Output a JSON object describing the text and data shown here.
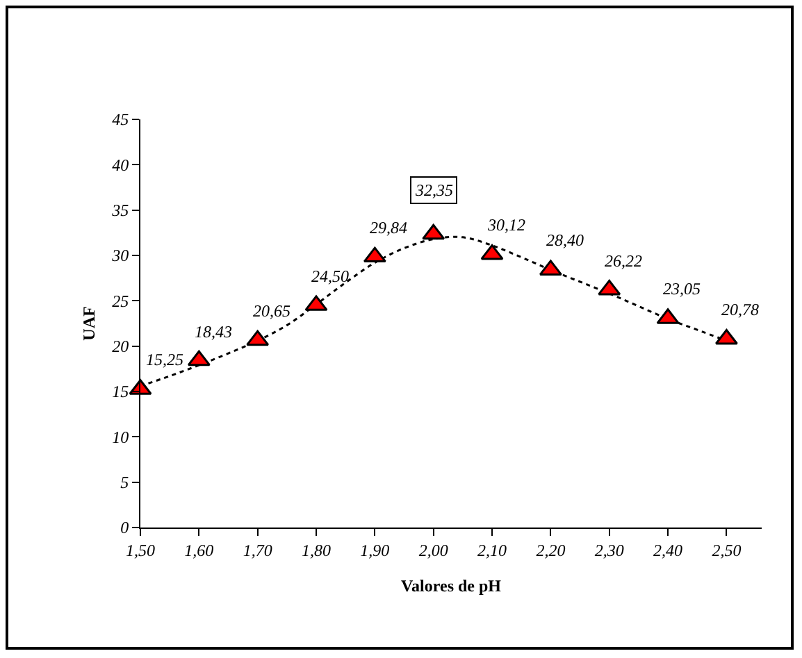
{
  "chart_data": {
    "type": "scatter",
    "xlabel": "Valores de pH",
    "ylabel": "UAF",
    "x": [
      1.5,
      1.6,
      1.7,
      1.8,
      1.9,
      2.0,
      2.1,
      2.2,
      2.3,
      2.4,
      2.5
    ],
    "series": [
      {
        "color": "#ff0000",
        "values": [
          15.25,
          18.43,
          20.65,
          24.5,
          29.84,
          32.35,
          30.12,
          28.4,
          26.22,
          23.05,
          20.78
        ],
        "value_labels": [
          "15,25",
          "18,43",
          "20,65",
          "24,50",
          "29,84",
          "32,35",
          "30,12",
          "28,40",
          "26,22",
          "23,05",
          "20,78"
        ]
      },
      {
        "type": "line",
        "color": "#000000",
        "line_style": "dotted",
        "marker": "none",
        "x": [
          1.5,
          1.55,
          1.6,
          1.65,
          1.7,
          1.75,
          1.8,
          1.85,
          1.9,
          1.95,
          2.0,
          2.05,
          2.1,
          2.15,
          2.2,
          2.25,
          2.3,
          2.35,
          2.4,
          2.45,
          2.5
        ],
        "values": [
          15.6,
          16.7,
          17.9,
          19.2,
          20.6,
          22.3,
          24.6,
          27.0,
          29.2,
          30.8,
          31.8,
          32.0,
          31.1,
          29.8,
          28.4,
          27.1,
          25.8,
          24.4,
          23.0,
          21.8,
          20.6
        ]
      }
    ],
    "marker": "triangle",
    "xlim": [
      1.5,
      2.56
    ],
    "xticks": [
      {
        "value": 1.5,
        "label": "1,50"
      },
      {
        "value": 1.6,
        "label": "1,60"
      },
      {
        "value": 1.7,
        "label": "1,70"
      },
      {
        "value": 1.8,
        "label": "1,80"
      },
      {
        "value": 1.9,
        "label": "1,90"
      },
      {
        "value": 2.0,
        "label": "2,00"
      },
      {
        "value": 2.1,
        "label": "2,10"
      },
      {
        "value": 2.2,
        "label": "2,20"
      },
      {
        "value": 2.3,
        "label": "2,30"
      },
      {
        "value": 2.4,
        "label": "2,40"
      },
      {
        "value": 2.5,
        "label": "2,50"
      }
    ],
    "ylim": [
      0,
      45
    ],
    "yticks": [
      0,
      5,
      10,
      15,
      20,
      25,
      30,
      35,
      40,
      45
    ],
    "grid": false,
    "legend": false
  }
}
